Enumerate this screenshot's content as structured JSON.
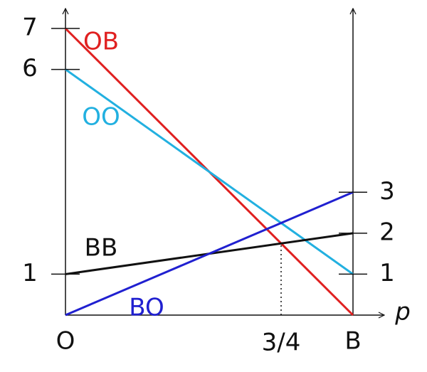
{
  "chart_data": {
    "type": "line",
    "xlabel": "p",
    "x": [
      0,
      1
    ],
    "xlim": [
      0,
      1
    ],
    "xticks": [
      {
        "value": 0,
        "label": "O"
      },
      {
        "value": 0.75,
        "label": "3/4"
      },
      {
        "value": 1,
        "label": "B"
      }
    ],
    "ylim": [
      0,
      7
    ],
    "yticks": [
      1,
      6,
      7
    ],
    "y2lim": [
      0,
      7
    ],
    "y2ticks": [
      1,
      2,
      3
    ],
    "series": [
      {
        "name": "OB",
        "color": "#e02020",
        "values": [
          7,
          0
        ]
      },
      {
        "name": "OO",
        "color": "#22b0e0",
        "values": [
          6,
          1
        ]
      },
      {
        "name": "BB",
        "color": "#111111",
        "values": [
          1,
          2
        ]
      },
      {
        "name": "BO",
        "color": "#2020d0",
        "values": [
          0,
          3
        ]
      }
    ]
  }
}
